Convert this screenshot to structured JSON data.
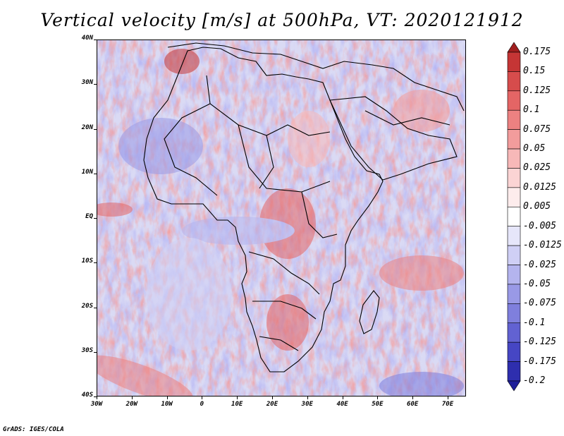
{
  "title": "Vertical velocity [m/s] at 500hPa, VT: 2020121912",
  "footer": "GrADS: IGES/COLA",
  "lat_labels": [
    "40N",
    "30N",
    "20N",
    "10N",
    "EQ",
    "10S",
    "20S",
    "30S",
    "40S"
  ],
  "lon_labels": [
    "30W",
    "20W",
    "10W",
    "0",
    "10E",
    "20E",
    "30E",
    "40E",
    "50E",
    "60E",
    "70E"
  ],
  "colorbar": {
    "labels": [
      "0.175",
      "0.15",
      "0.125",
      "0.1",
      "0.075",
      "0.05",
      "0.025",
      "0.0125",
      "0.005",
      "-0.005",
      "-0.0125",
      "-0.025",
      "-0.05",
      "-0.075",
      "-0.1",
      "-0.125",
      "-0.175",
      "-0.2"
    ],
    "colors": [
      "#a01e1e",
      "#c53535",
      "#d64c4c",
      "#e46565",
      "#ec8181",
      "#f29c9c",
      "#f7b8b8",
      "#fbd4d4",
      "#fdecec",
      "#ffffff",
      "#e6e6fa",
      "#cfcff5",
      "#b4b4ee",
      "#9999e6",
      "#7f7fdd",
      "#6262d2",
      "#4646c4",
      "#2e2eae",
      "#20209a"
    ]
  },
  "colors": {
    "positive": "#d94a4a",
    "negative": "#5a5ad8",
    "background": "#dadaf4",
    "coastline": "#000000"
  }
}
